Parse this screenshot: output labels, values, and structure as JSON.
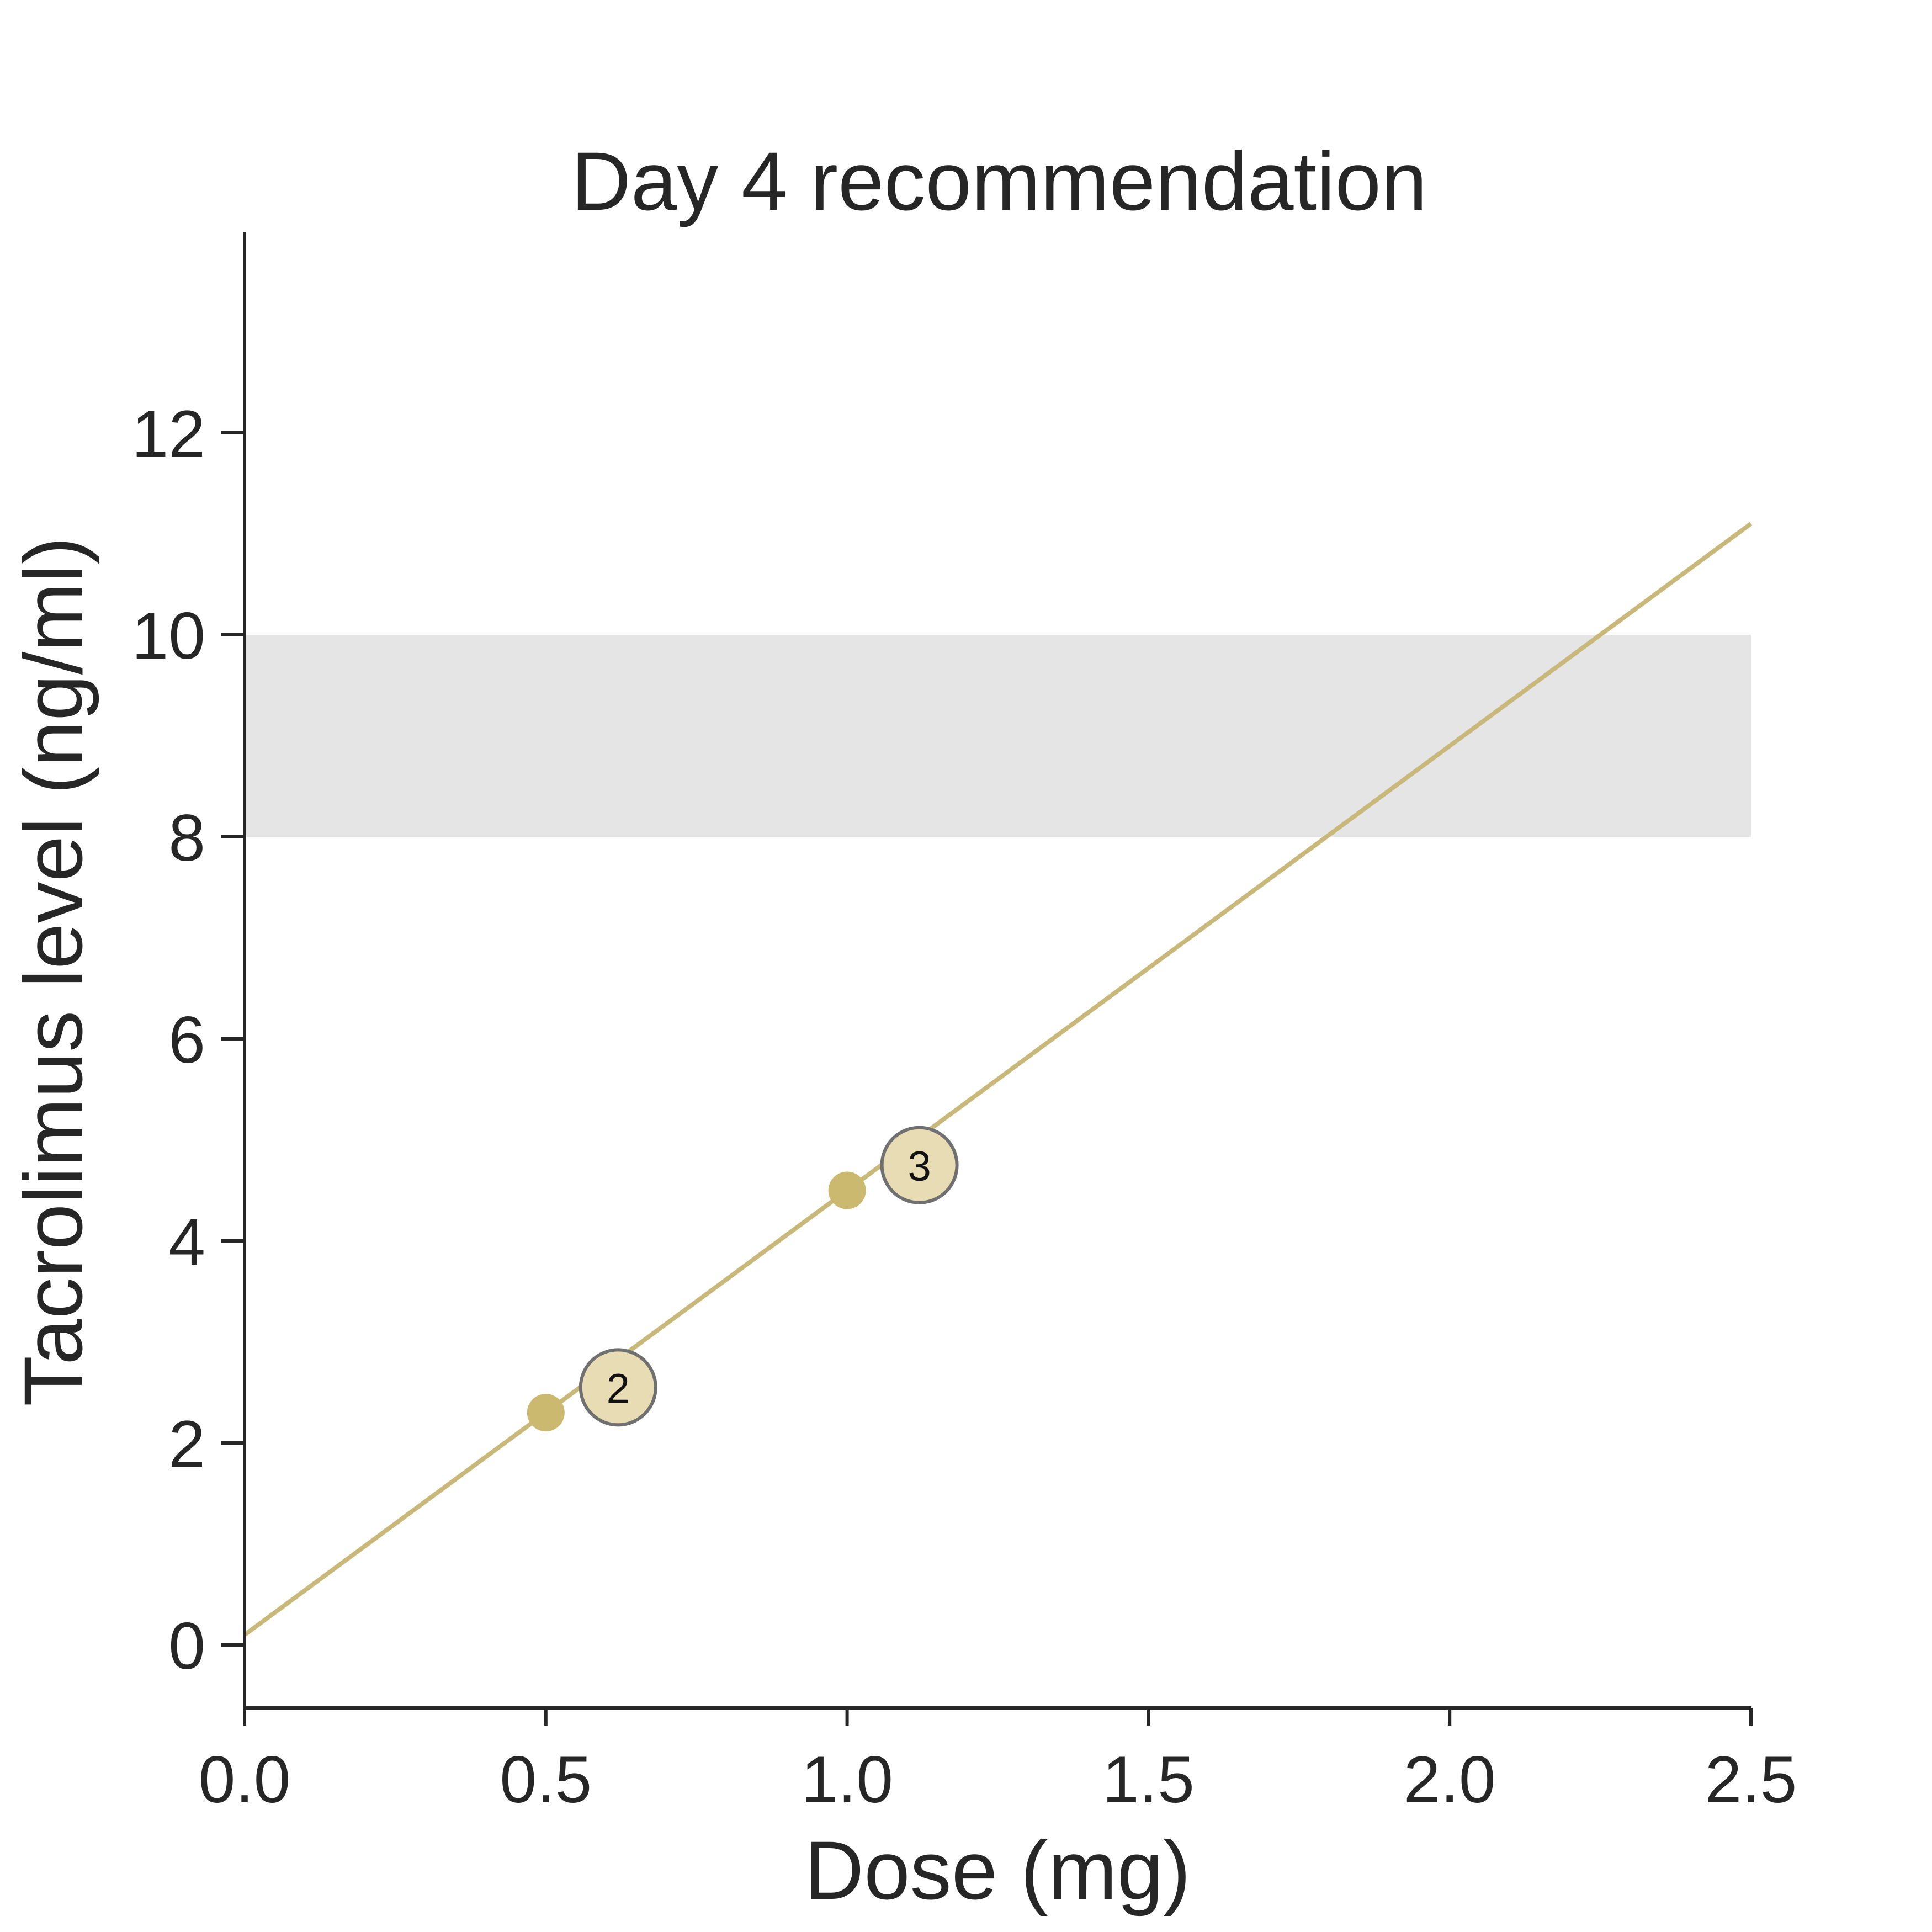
{
  "chart_data": {
    "type": "line",
    "title": "Day 4 recommendation",
    "xlabel": "Dose (mg)",
    "ylabel": "Tacrolimus level (ng/ml)",
    "xlim": [
      0.0,
      2.5
    ],
    "ylim": [
      -0.55,
      13.8
    ],
    "xticks": [
      "0.0",
      "0.5",
      "1.0",
      "1.5",
      "2.0",
      "2.5"
    ],
    "yticks": [
      "0",
      "2",
      "4",
      "6",
      "8",
      "10",
      "12"
    ],
    "grid": false,
    "target_range": {
      "y0": 8,
      "y1": 10,
      "color": "#e5e5e5"
    },
    "fit_line": {
      "x": [
        0.0,
        2.5
      ],
      "y": [
        0.1,
        11.1
      ],
      "color": "#c8b87a"
    },
    "observed_points": {
      "x": [
        0.5,
        1.0
      ],
      "y": [
        2.3,
        4.5
      ],
      "color": "#cbb96f"
    },
    "predicted_points": [
      {
        "label": "2",
        "x": 0.62,
        "y": 2.55,
        "fill": "#e8dcb5",
        "stroke": "#707070"
      },
      {
        "label": "3",
        "x": 1.12,
        "y": 4.75,
        "fill": "#e8dcb5",
        "stroke": "#707070"
      }
    ]
  }
}
